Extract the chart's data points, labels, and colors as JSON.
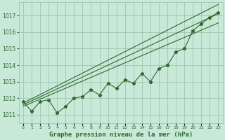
{
  "x": [
    0,
    1,
    2,
    3,
    4,
    5,
    6,
    7,
    8,
    9,
    10,
    11,
    12,
    13,
    14,
    15,
    16,
    17,
    18,
    19,
    20,
    21,
    22,
    23
  ],
  "y_main": [
    1011.8,
    1011.2,
    1011.8,
    1011.9,
    1011.1,
    1011.5,
    1012.0,
    1012.1,
    1012.5,
    1012.2,
    1012.9,
    1012.6,
    1013.1,
    1012.9,
    1013.5,
    1013.0,
    1013.8,
    1014.0,
    1014.8,
    1015.0,
    1016.1,
    1016.5,
    1016.9,
    1017.2
  ],
  "y_trend1": [
    1011.5,
    1011.72,
    1011.94,
    1012.16,
    1012.38,
    1012.6,
    1012.82,
    1013.04,
    1013.26,
    1013.48,
    1013.7,
    1013.92,
    1014.14,
    1014.36,
    1014.58,
    1014.8,
    1015.02,
    1015.24,
    1015.46,
    1015.68,
    1015.9,
    1016.12,
    1016.34,
    1016.56
  ],
  "y_trend2": [
    1011.6,
    1011.84,
    1012.08,
    1012.32,
    1012.56,
    1012.8,
    1013.04,
    1013.28,
    1013.52,
    1013.76,
    1014.0,
    1014.24,
    1014.48,
    1014.72,
    1014.96,
    1015.2,
    1015.44,
    1015.68,
    1015.92,
    1016.16,
    1016.4,
    1016.64,
    1016.88,
    1017.12
  ],
  "y_trend3": [
    1011.7,
    1011.96,
    1012.22,
    1012.48,
    1012.74,
    1013.0,
    1013.26,
    1013.52,
    1013.78,
    1014.04,
    1014.3,
    1014.56,
    1014.82,
    1015.08,
    1015.34,
    1015.6,
    1015.86,
    1016.12,
    1016.38,
    1016.64,
    1016.9,
    1017.16,
    1017.42,
    1017.68
  ],
  "line_color": "#2d6a2d",
  "bg_color": "#c8e8d8",
  "grid_color": "#9abfaa",
  "ylim": [
    1010.5,
    1017.8
  ],
  "yticks": [
    1011,
    1012,
    1013,
    1014,
    1015,
    1016,
    1017
  ],
  "xlim": [
    -0.5,
    23.5
  ],
  "xlabel": "Graphe pression niveau de la mer (hPa)"
}
